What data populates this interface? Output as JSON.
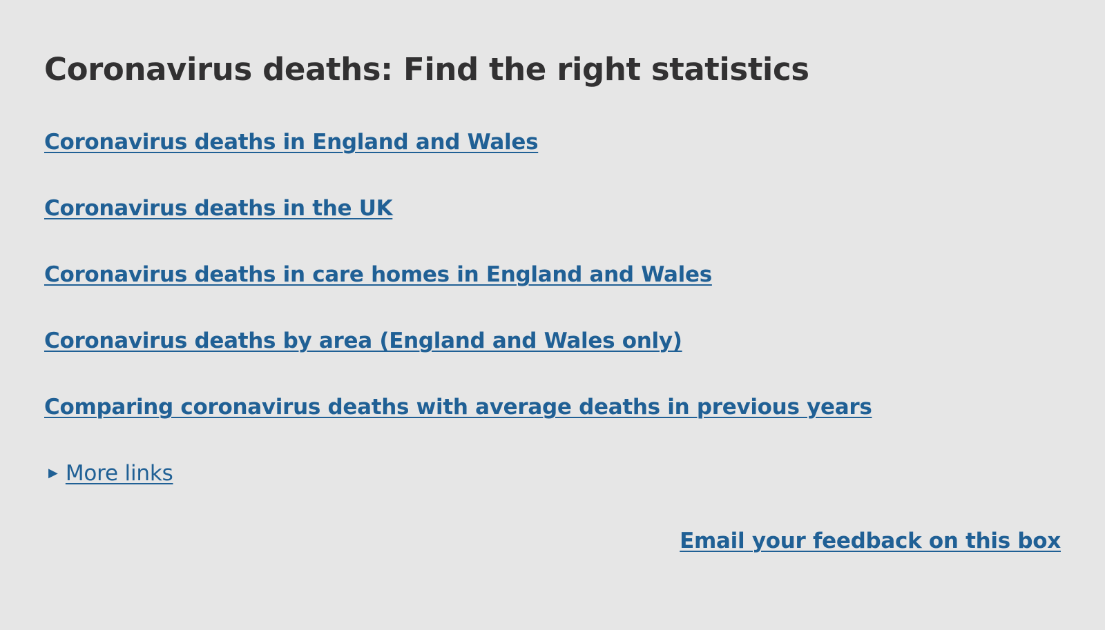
{
  "title": "Coronavirus deaths: Find the right statistics",
  "links": [
    "Coronavirus deaths in England and Wales",
    "Coronavirus deaths in the UK",
    "Coronavirus deaths in care homes in England and Wales",
    "Coronavirus deaths by area (England and Wales only)",
    "Comparing coronavirus deaths with average deaths in previous years"
  ],
  "more_links": {
    "icon": "triangle-right-icon",
    "label": "More links"
  },
  "feedback_link": "Email your feedback on this box",
  "colors": {
    "background": "#e6e6e6",
    "heading": "#323132",
    "link": "#206095"
  }
}
